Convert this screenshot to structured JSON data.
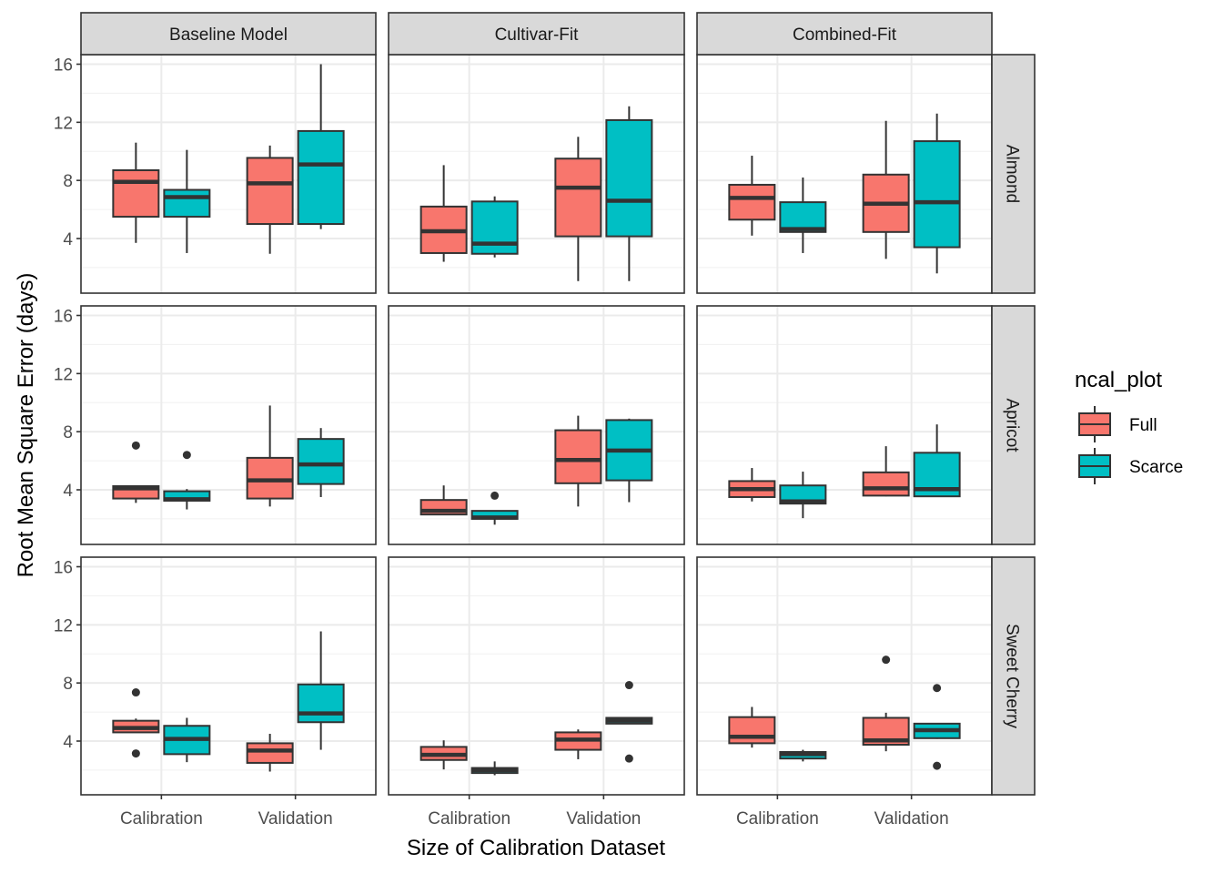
{
  "chart_data": {
    "type": "boxplot",
    "title": "",
    "xlabel": "Size of Calibration Dataset",
    "ylabel": "Root Mean Square Error (days)",
    "ylim": [
      0,
      16.7
    ],
    "yticks": [
      4,
      8,
      12,
      16
    ],
    "grid": true,
    "categories": [
      "Calibration",
      "Validation"
    ],
    "col_facets": [
      "Baseline Model",
      "Cultivar-Fit",
      "Combined-Fit"
    ],
    "row_facets": [
      "Almond",
      "Apricot",
      "Sweet Cherry"
    ],
    "legend": {
      "title": "ncal_plot",
      "position": "right",
      "entries": [
        {
          "name": "Full",
          "color": "#F8766D"
        },
        {
          "name": "Scarce",
          "color": "#00BFC4"
        }
      ]
    },
    "panels": [
      {
        "row": "Almond",
        "col": "Baseline Model",
        "boxes": [
          {
            "category": "Calibration",
            "group": "Full",
            "min": 3.7,
            "q1": 5.5,
            "median": 7.9,
            "q3": 8.7,
            "max": 10.6,
            "outliers": []
          },
          {
            "category": "Calibration",
            "group": "Scarce",
            "min": 3.0,
            "q1": 5.5,
            "median": 6.85,
            "q3": 7.35,
            "max": 10.1,
            "outliers": []
          },
          {
            "category": "Validation",
            "group": "Full",
            "min": 2.95,
            "q1": 5.0,
            "median": 7.8,
            "q3": 9.55,
            "max": 10.4,
            "outliers": []
          },
          {
            "category": "Validation",
            "group": "Scarce",
            "min": 4.65,
            "q1": 5.0,
            "median": 9.1,
            "q3": 11.4,
            "max": 16.0,
            "outliers": []
          }
        ]
      },
      {
        "row": "Almond",
        "col": "Cultivar-Fit",
        "boxes": [
          {
            "category": "Calibration",
            "group": "Full",
            "min": 2.4,
            "q1": 3.0,
            "median": 4.5,
            "q3": 6.2,
            "max": 9.05,
            "outliers": []
          },
          {
            "category": "Calibration",
            "group": "Scarce",
            "min": 2.7,
            "q1": 2.95,
            "median": 3.65,
            "q3": 6.55,
            "max": 6.9,
            "outliers": []
          },
          {
            "category": "Validation",
            "group": "Full",
            "min": 1.07,
            "q1": 4.15,
            "median": 7.5,
            "q3": 9.5,
            "max": 11.0,
            "outliers": []
          },
          {
            "category": "Validation",
            "group": "Scarce",
            "min": 1.07,
            "q1": 4.15,
            "median": 6.6,
            "q3": 12.15,
            "max": 13.1,
            "outliers": []
          }
        ]
      },
      {
        "row": "Almond",
        "col": "Combined-Fit",
        "boxes": [
          {
            "category": "Calibration",
            "group": "Full",
            "min": 4.2,
            "q1": 5.3,
            "median": 6.8,
            "q3": 7.7,
            "max": 9.7,
            "outliers": []
          },
          {
            "category": "Calibration",
            "group": "Scarce",
            "min": 3.0,
            "q1": 4.45,
            "median": 4.65,
            "q3": 6.5,
            "max": 8.2,
            "outliers": []
          },
          {
            "category": "Validation",
            "group": "Full",
            "min": 2.6,
            "q1": 4.45,
            "median": 6.4,
            "q3": 8.4,
            "max": 12.1,
            "outliers": []
          },
          {
            "category": "Validation",
            "group": "Scarce",
            "min": 1.6,
            "q1": 3.4,
            "median": 6.5,
            "q3": 10.7,
            "max": 12.6,
            "outliers": []
          }
        ]
      },
      {
        "row": "Apricot",
        "col": "Baseline Model",
        "boxes": [
          {
            "category": "Calibration",
            "group": "Full",
            "min": 3.1,
            "q1": 3.4,
            "median": 4.1,
            "q3": 4.25,
            "max": 4.25,
            "outliers": [
              7.05
            ]
          },
          {
            "category": "Calibration",
            "group": "Scarce",
            "min": 2.65,
            "q1": 3.25,
            "median": 3.35,
            "q3": 3.9,
            "max": 4.05,
            "outliers": [
              6.4
            ]
          },
          {
            "category": "Validation",
            "group": "Full",
            "min": 2.85,
            "q1": 3.4,
            "median": 4.65,
            "q3": 6.2,
            "max": 9.8,
            "outliers": []
          },
          {
            "category": "Validation",
            "group": "Scarce",
            "min": 3.5,
            "q1": 4.4,
            "median": 5.75,
            "q3": 7.5,
            "max": 8.25,
            "outliers": []
          }
        ]
      },
      {
        "row": "Apricot",
        "col": "Cultivar-Fit",
        "boxes": [
          {
            "category": "Calibration",
            "group": "Full",
            "min": 2.25,
            "q1": 2.3,
            "median": 2.55,
            "q3": 3.3,
            "max": 4.3,
            "outliers": []
          },
          {
            "category": "Calibration",
            "group": "Scarce",
            "min": 1.6,
            "q1": 2.0,
            "median": 2.1,
            "q3": 2.55,
            "max": 2.55,
            "outliers": [
              3.6
            ]
          },
          {
            "category": "Validation",
            "group": "Full",
            "min": 2.85,
            "q1": 4.45,
            "median": 6.05,
            "q3": 8.1,
            "max": 9.1,
            "outliers": []
          },
          {
            "category": "Validation",
            "group": "Scarce",
            "min": 3.15,
            "q1": 4.65,
            "median": 6.7,
            "q3": 8.8,
            "max": 8.9,
            "outliers": []
          }
        ]
      },
      {
        "row": "Apricot",
        "col": "Combined-Fit",
        "boxes": [
          {
            "category": "Calibration",
            "group": "Full",
            "min": 3.2,
            "q1": 3.5,
            "median": 4.05,
            "q3": 4.6,
            "max": 5.5,
            "outliers": []
          },
          {
            "category": "Calibration",
            "group": "Scarce",
            "min": 2.05,
            "q1": 3.05,
            "median": 3.2,
            "q3": 4.3,
            "max": 5.25,
            "outliers": []
          },
          {
            "category": "Validation",
            "group": "Full",
            "min": 3.55,
            "q1": 3.6,
            "median": 4.1,
            "q3": 5.2,
            "max": 7.0,
            "outliers": []
          },
          {
            "category": "Validation",
            "group": "Scarce",
            "min": 3.5,
            "q1": 3.55,
            "median": 4.05,
            "q3": 6.55,
            "max": 8.5,
            "outliers": []
          }
        ]
      },
      {
        "row": "Sweet Cherry",
        "col": "Baseline Model",
        "boxes": [
          {
            "category": "Calibration",
            "group": "Full",
            "min": 4.6,
            "q1": 4.6,
            "median": 4.9,
            "q3": 5.4,
            "max": 5.55,
            "outliers": [
              7.35,
              3.15
            ]
          },
          {
            "category": "Calibration",
            "group": "Scarce",
            "min": 2.55,
            "q1": 3.1,
            "median": 4.15,
            "q3": 5.05,
            "max": 5.6,
            "outliers": []
          },
          {
            "category": "Validation",
            "group": "Full",
            "min": 1.9,
            "q1": 2.5,
            "median": 3.35,
            "q3": 3.85,
            "max": 4.5,
            "outliers": []
          },
          {
            "category": "Validation",
            "group": "Scarce",
            "min": 3.4,
            "q1": 5.3,
            "median": 5.9,
            "q3": 7.9,
            "max": 11.55,
            "outliers": []
          }
        ]
      },
      {
        "row": "Sweet Cherry",
        "col": "Cultivar-Fit",
        "boxes": [
          {
            "category": "Calibration",
            "group": "Full",
            "min": 2.05,
            "q1": 2.7,
            "median": 3.05,
            "q3": 3.6,
            "max": 4.05,
            "outliers": []
          },
          {
            "category": "Calibration",
            "group": "Scarce",
            "min": 1.65,
            "q1": 1.8,
            "median": 2.0,
            "q3": 2.15,
            "max": 2.6,
            "outliers": []
          },
          {
            "category": "Validation",
            "group": "Full",
            "min": 2.75,
            "q1": 3.4,
            "median": 4.1,
            "q3": 4.6,
            "max": 4.8,
            "outliers": []
          },
          {
            "category": "Validation",
            "group": "Scarce",
            "min": 5.2,
            "q1": 5.2,
            "median": 5.4,
            "q3": 5.6,
            "max": 5.6,
            "outliers": [
              7.85,
              2.8
            ]
          }
        ]
      },
      {
        "row": "Sweet Cherry",
        "col": "Combined-Fit",
        "boxes": [
          {
            "category": "Calibration",
            "group": "Full",
            "min": 3.55,
            "q1": 3.85,
            "median": 4.3,
            "q3": 5.65,
            "max": 6.35,
            "outliers": []
          },
          {
            "category": "Calibration",
            "group": "Scarce",
            "min": 2.6,
            "q1": 2.8,
            "median": 3.1,
            "q3": 3.25,
            "max": 3.4,
            "outliers": []
          },
          {
            "category": "Validation",
            "group": "Full",
            "min": 3.3,
            "q1": 3.75,
            "median": 4.05,
            "q3": 5.6,
            "max": 5.95,
            "outliers": [
              9.6
            ]
          },
          {
            "category": "Validation",
            "group": "Scarce",
            "min": 4.15,
            "q1": 4.2,
            "median": 4.75,
            "q3": 5.2,
            "max": 5.2,
            "outliers": [
              7.65,
              2.3
            ]
          }
        ]
      }
    ]
  }
}
